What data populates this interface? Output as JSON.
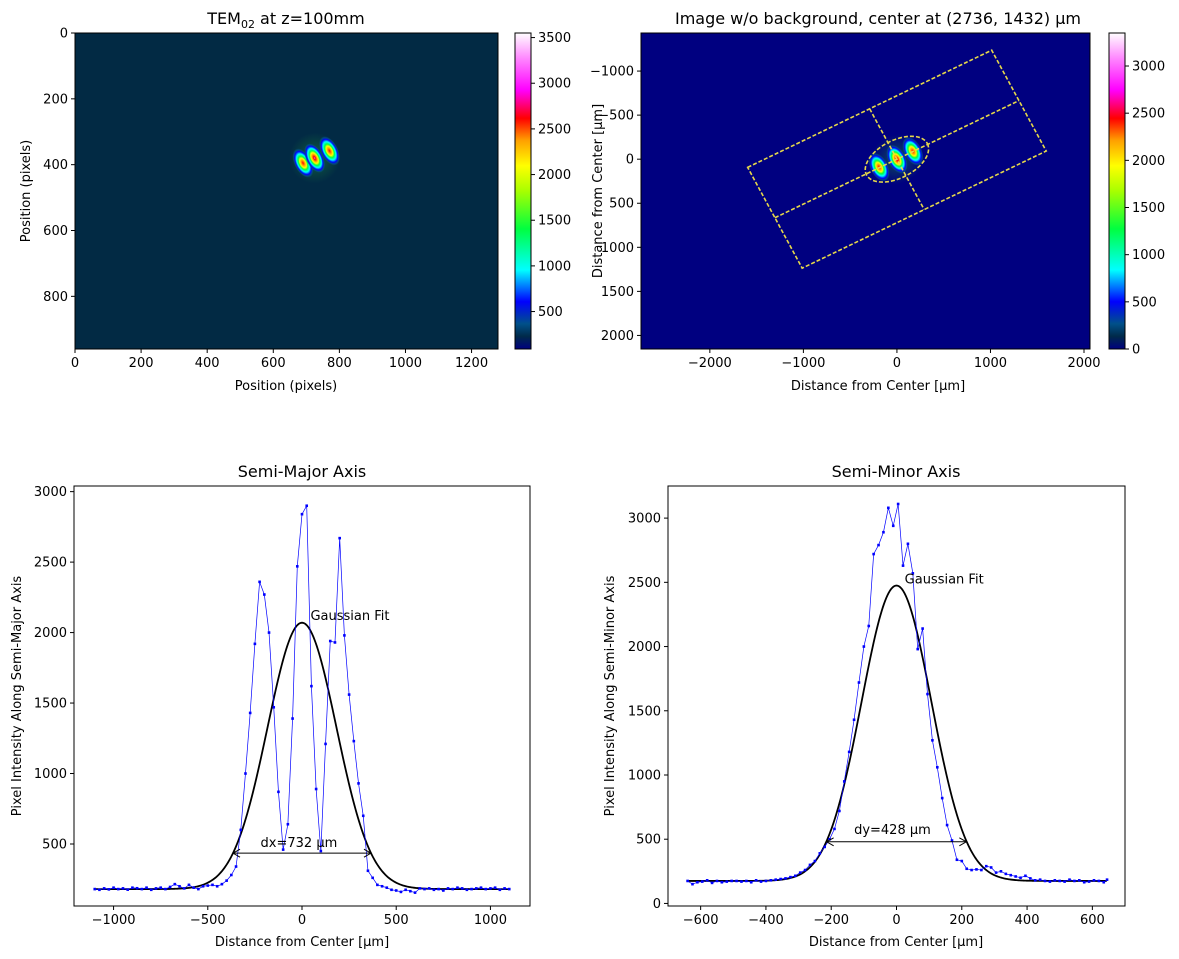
{
  "chart_data": [
    {
      "id": "raw",
      "type": "heatmap",
      "title": "TEM",
      "title_sub": "02",
      "title_rest": " at z=100mm",
      "xlabel": "Position (pixels)",
      "ylabel": "Position (pixels)",
      "xlim": [
        0,
        1280
      ],
      "ylim": [
        960,
        0
      ],
      "xticks": [
        0,
        200,
        400,
        600,
        800,
        1000,
        1200
      ],
      "yticks": [
        0,
        200,
        400,
        600,
        800
      ],
      "colorbar": {
        "vmin": 90,
        "vmax": 3550,
        "ticks": [
          500,
          1000,
          1500,
          2000,
          2500,
          3000,
          3500
        ]
      },
      "background_color": "#022a44",
      "lobes": [
        {
          "x": 690,
          "y": 395,
          "peak": 2300
        },
        {
          "x": 725,
          "y": 380,
          "peak": 3500
        },
        {
          "x": 770,
          "y": 358,
          "peak": 2900
        }
      ]
    },
    {
      "id": "bgsub",
      "type": "heatmap",
      "title": "Image w/o background, center at (2736, 1432) µm",
      "xlabel": "Distance from Center [µm]",
      "ylabel": "Distance from Center [µm]",
      "xlim": [
        -2736,
        2064
      ],
      "ylim": [
        2154,
        -1432
      ],
      "xticks": [
        -2000,
        -1000,
        0,
        1000,
        2000
      ],
      "yticks": [
        -1000,
        -500,
        0,
        500,
        1000,
        1500,
        2000
      ],
      "colorbar": {
        "vmin": 0,
        "vmax": 3350,
        "ticks": [
          0,
          500,
          1000,
          1500,
          2000,
          2500,
          3000
        ]
      },
      "background_color": "#000080",
      "lobes": [
        {
          "x": -190,
          "y": 90,
          "peak": 2300
        },
        {
          "x": 0,
          "y": 0,
          "peak": 3300
        },
        {
          "x": 170,
          "y": -90,
          "peak": 2900
        }
      ],
      "overlay": {
        "center": [
          0,
          0
        ],
        "angle_deg": -27,
        "semi_major": 366,
        "semi_minor": 214,
        "rect_half_length": 1464,
        "rect_half_width": 642,
        "color": "#e6d84a"
      }
    },
    {
      "id": "major",
      "type": "line",
      "title": "Semi-Major Axis",
      "xlabel": "Distance from Center [µm]",
      "ylabel": "Pixel Intensity Along Semi-Major Axis",
      "xlim": [
        -1210,
        1210
      ],
      "ylim": [
        60,
        3040
      ],
      "xticks": [
        -1000,
        -500,
        0,
        500,
        1000
      ],
      "yticks": [
        500,
        1000,
        1500,
        2000,
        2500,
        3000
      ],
      "series": [
        {
          "role": "measured",
          "color": "#0000ff",
          "x": [
            -1100,
            -1075,
            -1050,
            -1025,
            -1000,
            -975,
            -950,
            -925,
            -900,
            -875,
            -850,
            -825,
            -800,
            -775,
            -750,
            -725,
            -700,
            -675,
            -650,
            -625,
            -600,
            -575,
            -550,
            -525,
            -500,
            -475,
            -450,
            -425,
            -400,
            -375,
            -350,
            -325,
            -300,
            -275,
            -250,
            -225,
            -200,
            -175,
            -150,
            -125,
            -100,
            -75,
            -50,
            -25,
            0,
            25,
            50,
            75,
            100,
            125,
            150,
            175,
            200,
            225,
            250,
            275,
            300,
            325,
            350,
            375,
            400,
            425,
            450,
            475,
            500,
            525,
            550,
            575,
            600,
            625,
            650,
            675,
            700,
            725,
            750,
            775,
            800,
            825,
            850,
            875,
            900,
            925,
            950,
            975,
            1000,
            1025,
            1050,
            1075,
            1100
          ],
          "y": [
            180,
            175,
            185,
            178,
            190,
            180,
            185,
            176,
            190,
            186,
            180,
            190,
            175,
            185,
            190,
            180,
            195,
            215,
            200,
            185,
            210,
            190,
            180,
            200,
            205,
            210,
            200,
            215,
            240,
            280,
            340,
            600,
            1000,
            1430,
            1920,
            2360,
            2270,
            2000,
            1470,
            870,
            460,
            640,
            1390,
            2470,
            2840,
            2900,
            1620,
            890,
            450,
            1210,
            1940,
            1930,
            2670,
            1980,
            1560,
            1230,
            930,
            700,
            310,
            260,
            210,
            200,
            190,
            175,
            170,
            160,
            175,
            165,
            155,
            185,
            180,
            185,
            175,
            180,
            170,
            185,
            180,
            190,
            185,
            175,
            180,
            185,
            190,
            180,
            185,
            190,
            175,
            185,
            180
          ]
        },
        {
          "role": "fit",
          "name": "Gaussian Fit",
          "color": "#000000",
          "amplitude": 1890,
          "offset": 180,
          "center": 0,
          "sigma": 183
        }
      ],
      "annotations": [
        {
          "text": "Gaussian Fit",
          "x": 45,
          "y": 2090
        },
        {
          "text": "dx=732 µm",
          "x": -220,
          "y": 480,
          "arrow_from": -366,
          "arrow_to": 366,
          "arrow_y": 435
        }
      ]
    },
    {
      "id": "minor",
      "type": "line",
      "title": "Semi-Minor Axis",
      "xlabel": "Distance from Center [µm]",
      "ylabel": "Pixel Intensity Along Semi-Minor Axis",
      "xlim": [
        -700,
        700
      ],
      "ylim": [
        -20,
        3250
      ],
      "xticks": [
        -600,
        -400,
        -200,
        0,
        200,
        400,
        600
      ],
      "yticks": [
        0,
        500,
        1000,
        1500,
        2000,
        2500,
        3000
      ],
      "series": [
        {
          "role": "measured",
          "color": "#0000ff",
          "x": [
            -640,
            -625,
            -610,
            -595,
            -580,
            -565,
            -550,
            -535,
            -520,
            -505,
            -490,
            -475,
            -460,
            -445,
            -430,
            -415,
            -400,
            -385,
            -370,
            -355,
            -340,
            -325,
            -310,
            -295,
            -280,
            -265,
            -250,
            -235,
            -220,
            -205,
            -190,
            -175,
            -160,
            -145,
            -130,
            -115,
            -100,
            -85,
            -70,
            -55,
            -40,
            -25,
            -10,
            5,
            20,
            35,
            50,
            65,
            80,
            95,
            110,
            125,
            140,
            155,
            170,
            185,
            200,
            215,
            230,
            245,
            260,
            275,
            290,
            305,
            320,
            335,
            350,
            365,
            380,
            395,
            410,
            425,
            440,
            455,
            470,
            485,
            500,
            515,
            530,
            545,
            560,
            575,
            590,
            605,
            620,
            635,
            645
          ],
          "y": [
            175,
            150,
            165,
            170,
            180,
            160,
            175,
            165,
            170,
            175,
            175,
            170,
            175,
            165,
            180,
            170,
            175,
            180,
            185,
            190,
            195,
            205,
            215,
            240,
            260,
            300,
            330,
            390,
            440,
            500,
            580,
            720,
            950,
            1180,
            1430,
            1720,
            2000,
            2160,
            2720,
            2790,
            2890,
            3080,
            2940,
            3110,
            2630,
            2800,
            2570,
            1980,
            2140,
            1630,
            1270,
            1060,
            820,
            610,
            490,
            340,
            330,
            270,
            260,
            265,
            260,
            290,
            280,
            240,
            250,
            230,
            220,
            210,
            200,
            215,
            195,
            180,
            185,
            175,
            170,
            180,
            175,
            170,
            185,
            175,
            180,
            165,
            170,
            180,
            175,
            165,
            185
          ]
        },
        {
          "role": "fit",
          "name": "Gaussian Fit",
          "color": "#000000",
          "amplitude": 2300,
          "offset": 175,
          "center": 0,
          "sigma": 107
        }
      ],
      "annotations": [
        {
          "text": "Gaussian Fit",
          "x": 25,
          "y": 2490
        },
        {
          "text": "dy=428 µm",
          "x": -130,
          "y": 540,
          "arrow_from": -214,
          "arrow_to": 214,
          "arrow_y": 480
        }
      ]
    }
  ]
}
